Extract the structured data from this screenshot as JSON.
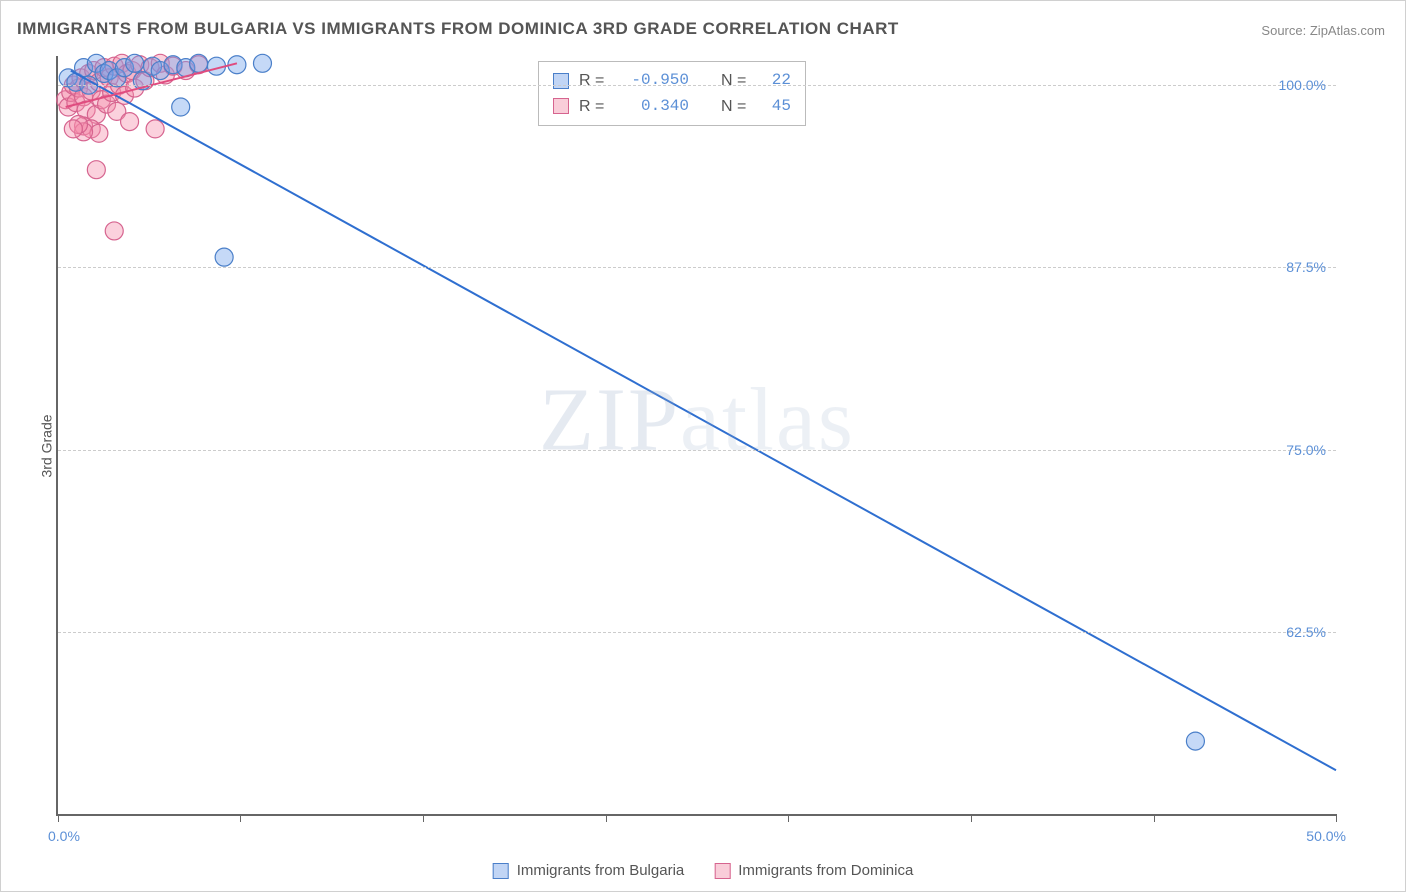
{
  "title": "IMMIGRANTS FROM BULGARIA VS IMMIGRANTS FROM DOMINICA 3RD GRADE CORRELATION CHART",
  "source_label": "Source:",
  "source_name": "ZipAtlas.com",
  "ylabel": "3rd Grade",
  "watermark": "ZIPatlas",
  "chart": {
    "type": "scatter-with-regression",
    "background_color": "#ffffff",
    "grid_color": "#cccccc",
    "axis_color": "#666666",
    "tick_label_color": "#5b8fd6",
    "xlim": [
      0.0,
      50.0
    ],
    "ylim": [
      50.0,
      102.0
    ],
    "ytick_values": [
      62.5,
      75.0,
      87.5,
      100.0
    ],
    "ytick_labels": [
      "62.5%",
      "75.0%",
      "87.5%",
      "100.0%"
    ],
    "xtick_values": [
      0.0,
      7.14,
      14.28,
      21.43,
      28.57,
      35.71,
      42.86,
      50.0
    ],
    "xaxis_end_labels": [
      "0.0%",
      "50.0%"
    ],
    "marker_radius": 9,
    "marker_opacity": 0.45,
    "line_width": 2,
    "series": [
      {
        "name": "Immigrants from Bulgaria",
        "color_fill": "rgba(110,160,235,0.4)",
        "color_stroke": "#4a7fc9",
        "line_color": "#2f6fd0",
        "r_label": "R =",
        "n_label": "N =",
        "r_value": "-0.950",
        "n_value": "22",
        "regression": {
          "x1": 0.5,
          "y1": 101.0,
          "x2": 50.0,
          "y2": 53.0
        },
        "points": [
          {
            "x": 0.4,
            "y": 100.5
          },
          {
            "x": 0.7,
            "y": 100.2
          },
          {
            "x": 1.0,
            "y": 101.2
          },
          {
            "x": 1.2,
            "y": 100.0
          },
          {
            "x": 1.5,
            "y": 101.5
          },
          {
            "x": 1.8,
            "y": 100.8
          },
          {
            "x": 2.0,
            "y": 101.0
          },
          {
            "x": 2.3,
            "y": 100.5
          },
          {
            "x": 2.6,
            "y": 101.2
          },
          {
            "x": 3.0,
            "y": 101.5
          },
          {
            "x": 3.3,
            "y": 100.3
          },
          {
            "x": 3.7,
            "y": 101.3
          },
          {
            "x": 4.0,
            "y": 101.0
          },
          {
            "x": 4.5,
            "y": 101.4
          },
          {
            "x": 5.0,
            "y": 101.2
          },
          {
            "x": 5.5,
            "y": 101.5
          },
          {
            "x": 6.2,
            "y": 101.3
          },
          {
            "x": 7.0,
            "y": 101.4
          },
          {
            "x": 8.0,
            "y": 101.5
          },
          {
            "x": 4.8,
            "y": 98.5
          },
          {
            "x": 6.5,
            "y": 88.2
          },
          {
            "x": 44.5,
            "y": 55.0
          }
        ]
      },
      {
        "name": "Immigrants from Dominica",
        "color_fill": "rgba(245,140,170,0.4)",
        "color_stroke": "#d6648f",
        "line_color": "#e04c7f",
        "r_label": "R =",
        "n_label": "N =",
        "r_value": "0.340",
        "n_value": "45",
        "regression": {
          "x1": 0.3,
          "y1": 98.5,
          "x2": 7.0,
          "y2": 101.5
        },
        "points": [
          {
            "x": 0.3,
            "y": 99.0
          },
          {
            "x": 0.4,
            "y": 98.5
          },
          {
            "x": 0.5,
            "y": 99.5
          },
          {
            "x": 0.6,
            "y": 100.0
          },
          {
            "x": 0.7,
            "y": 98.8
          },
          {
            "x": 0.8,
            "y": 99.8
          },
          {
            "x": 0.9,
            "y": 100.5
          },
          {
            "x": 1.0,
            "y": 99.2
          },
          {
            "x": 1.1,
            "y": 98.3
          },
          {
            "x": 1.2,
            "y": 100.8
          },
          {
            "x": 1.3,
            "y": 99.6
          },
          {
            "x": 1.4,
            "y": 101.0
          },
          {
            "x": 1.5,
            "y": 98.0
          },
          {
            "x": 1.6,
            "y": 100.2
          },
          {
            "x": 1.7,
            "y": 99.0
          },
          {
            "x": 1.8,
            "y": 101.2
          },
          {
            "x": 1.9,
            "y": 98.7
          },
          {
            "x": 2.0,
            "y": 100.5
          },
          {
            "x": 2.1,
            "y": 99.5
          },
          {
            "x": 2.2,
            "y": 101.3
          },
          {
            "x": 2.3,
            "y": 98.2
          },
          {
            "x": 2.4,
            "y": 100.0
          },
          {
            "x": 2.5,
            "y": 101.5
          },
          {
            "x": 2.6,
            "y": 99.3
          },
          {
            "x": 2.7,
            "y": 100.8
          },
          {
            "x": 2.8,
            "y": 97.5
          },
          {
            "x": 2.9,
            "y": 101.0
          },
          {
            "x": 3.0,
            "y": 99.8
          },
          {
            "x": 3.2,
            "y": 101.4
          },
          {
            "x": 3.4,
            "y": 100.3
          },
          {
            "x": 3.6,
            "y": 101.2
          },
          {
            "x": 3.8,
            "y": 97.0
          },
          {
            "x": 4.0,
            "y": 101.5
          },
          {
            "x": 4.2,
            "y": 100.7
          },
          {
            "x": 4.5,
            "y": 101.3
          },
          {
            "x": 1.0,
            "y": 97.2
          },
          {
            "x": 1.3,
            "y": 97.0
          },
          {
            "x": 1.6,
            "y": 96.7
          },
          {
            "x": 1.0,
            "y": 96.8
          },
          {
            "x": 0.8,
            "y": 97.3
          },
          {
            "x": 0.6,
            "y": 97.0
          },
          {
            "x": 1.5,
            "y": 94.2
          },
          {
            "x": 2.2,
            "y": 90.0
          },
          {
            "x": 5.0,
            "y": 101.0
          },
          {
            "x": 5.5,
            "y": 101.4
          }
        ]
      }
    ]
  },
  "legend_bottom": [
    {
      "label": "Immigrants from Bulgaria",
      "swatch": "blue"
    },
    {
      "label": "Immigrants from Dominica",
      "swatch": "pink"
    }
  ]
}
